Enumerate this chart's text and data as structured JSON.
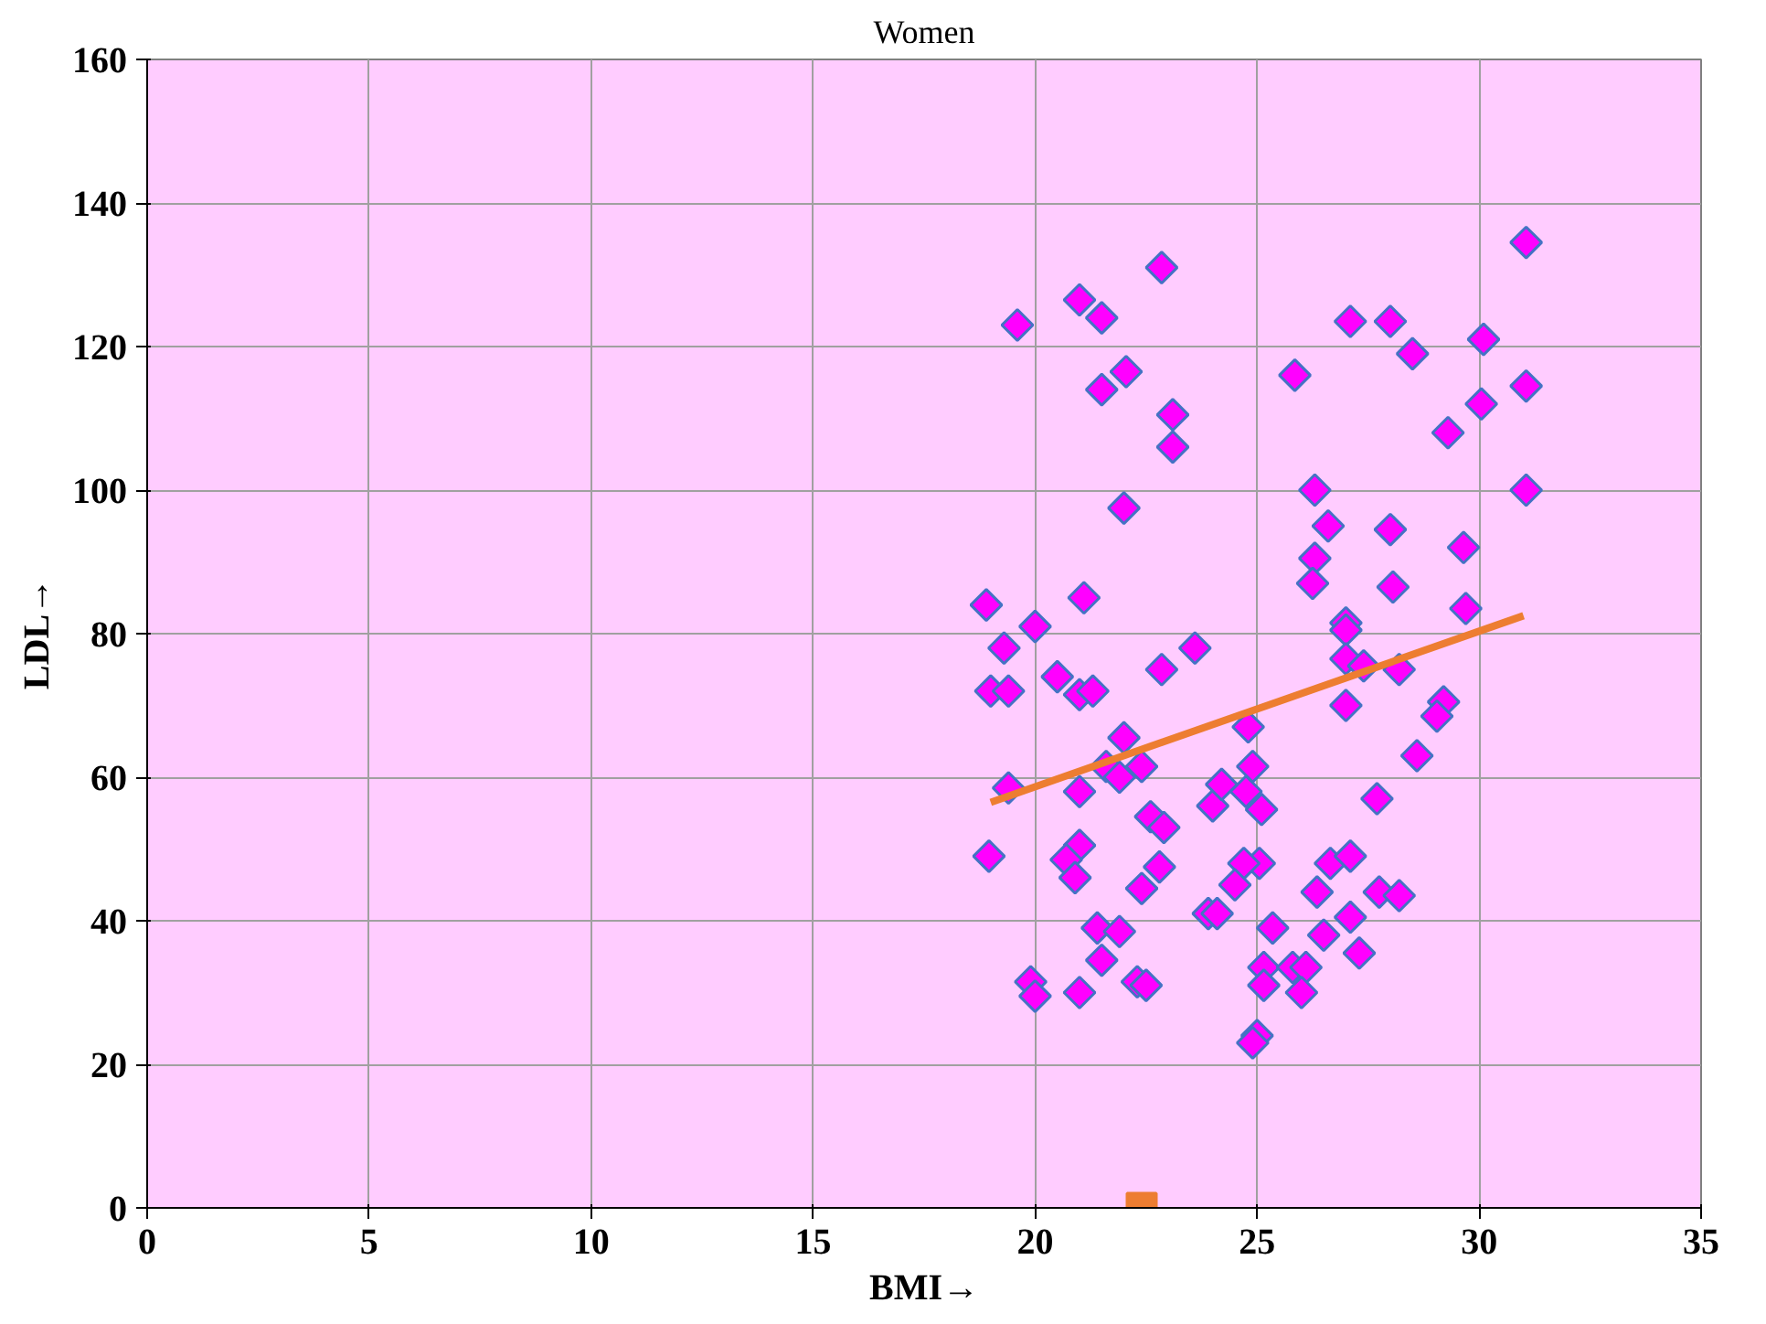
{
  "chart_data": {
    "type": "scatter",
    "title": "Women",
    "xlabel": "BMI→",
    "ylabel": "LDL→",
    "xlim": [
      0,
      35
    ],
    "ylim": [
      0,
      160
    ],
    "xticks": [
      0,
      5,
      10,
      15,
      20,
      25,
      30,
      35
    ],
    "yticks": [
      0,
      20,
      40,
      60,
      80,
      100,
      120,
      140,
      160
    ],
    "grid": true,
    "series": [
      {
        "marker": "diamond",
        "color": "#ff00ff",
        "x": [
          22.85,
          21.0,
          21.5,
          19.6,
          21.5,
          22.05,
          23.1,
          23.1,
          22.0,
          18.9,
          21.1,
          20.0,
          23.6,
          19.3,
          22.85,
          20.5,
          19.0,
          19.4,
          21.0,
          21.3,
          22.0,
          21.6,
          22.4,
          21.9,
          19.4,
          21.0,
          22.6,
          22.9,
          18.96,
          21.0,
          20.7,
          20.9,
          22.8,
          22.4,
          21.4,
          21.9,
          21.5,
          19.9,
          20.0,
          21.0,
          22.3,
          22.5,
          31.06,
          27.1,
          28.0,
          28.5,
          30.1,
          25.85,
          31.06,
          30.05,
          29.3,
          26.3,
          31.06,
          26.6,
          28.0,
          29.65,
          26.3,
          26.25,
          28.06,
          29.7,
          27.0,
          27.0,
          27.0,
          27.4,
          28.2,
          27.0,
          29.2,
          29.05,
          28.6,
          24.8,
          24.9,
          24.75,
          25.1,
          27.7,
          25.05,
          24.7,
          26.65,
          27.1,
          26.35,
          27.75,
          28.2,
          25.35,
          26.5,
          27.1,
          27.3,
          25.15,
          25.15,
          25.8,
          26.1,
          26.0,
          25.0,
          24.9,
          23.9,
          24.1,
          24.0,
          24.2,
          24.5
        ],
        "values": [
          131,
          126.5,
          124,
          123,
          114,
          116.5,
          110.5,
          106,
          97.5,
          84,
          85,
          81,
          78,
          78,
          75,
          74,
          72,
          72,
          71.5,
          72,
          65.5,
          61.5,
          61.5,
          60,
          58.5,
          58,
          54.5,
          53,
          49,
          50.5,
          48.5,
          46,
          47.5,
          44.5,
          39,
          38.5,
          34.5,
          31.5,
          29.5,
          30,
          31.5,
          31,
          134.5,
          123.5,
          123.5,
          119,
          121,
          116,
          114.5,
          112,
          108,
          100,
          100,
          95,
          94.5,
          92,
          90.5,
          87,
          86.5,
          83.5,
          81.5,
          80.5,
          76.5,
          75.5,
          75,
          70,
          70.5,
          68.5,
          63,
          67,
          61.5,
          58,
          55.5,
          57,
          48,
          48,
          48,
          49,
          44,
          44,
          43.5,
          39,
          38,
          40.5,
          35.5,
          33.5,
          31,
          33.5,
          33.5,
          30,
          24,
          23,
          41,
          41,
          56,
          59,
          45
        ]
      },
      {
        "type": "line",
        "color": "#ed7d31",
        "x": [
          19,
          31
        ],
        "values": [
          56.5,
          82.5
        ]
      },
      {
        "type": "scatter",
        "marker": "square",
        "color": "#ed7d31",
        "x": [
          22.4
        ],
        "values": [
          0
        ]
      }
    ]
  }
}
